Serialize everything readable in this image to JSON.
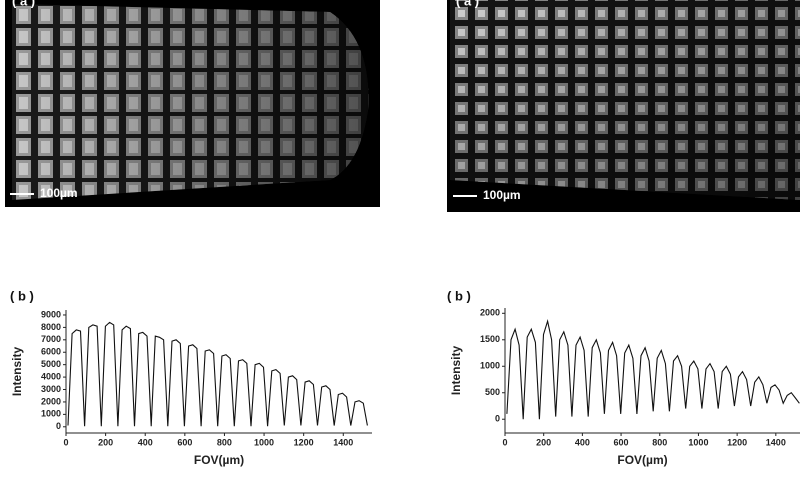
{
  "images": [
    {
      "label": "( a )",
      "scale_bar": "100µm"
    },
    {
      "label": "( a )",
      "scale_bar": "100µm"
    }
  ],
  "chart_data": [
    {
      "type": "line",
      "panel_label": "( b )",
      "x_label": "FOV(µm)",
      "y_label": "Intensity",
      "color": "#111111",
      "x": [
        10,
        31,
        52,
        73,
        94,
        115,
        136,
        157,
        178,
        199,
        220,
        241,
        262,
        283,
        304,
        325,
        346,
        367,
        388,
        409,
        430,
        451,
        472,
        493,
        514,
        535,
        556,
        577,
        598,
        619,
        640,
        661,
        682,
        703,
        724,
        745,
        766,
        787,
        808,
        829,
        850,
        871,
        892,
        913,
        934,
        955,
        976,
        997,
        1018,
        1039,
        1060,
        1081,
        1102,
        1123,
        1144,
        1165,
        1186,
        1207,
        1228,
        1249,
        1270,
        1291,
        1312,
        1333,
        1354,
        1375,
        1396,
        1417,
        1438,
        1459,
        1480,
        1501,
        1522
      ],
      "values": [
        100,
        7500,
        7800,
        7700,
        50,
        8000,
        8200,
        8100,
        50,
        8100,
        8400,
        8200,
        50,
        7800,
        8100,
        7900,
        50,
        7500,
        7600,
        7300,
        50,
        7300,
        7200,
        7000,
        50,
        6900,
        7000,
        6700,
        50,
        6500,
        6600,
        6300,
        50,
        6100,
        6200,
        5900,
        50,
        5700,
        5800,
        5500,
        50,
        5300,
        5400,
        5100,
        50,
        5000,
        5100,
        4800,
        50,
        4500,
        4600,
        4300,
        100,
        4000,
        4100,
        3800,
        100,
        3600,
        3700,
        3400,
        100,
        3200,
        3300,
        3000,
        100,
        2600,
        2700,
        2400,
        100,
        2000,
        2100,
        1900,
        100
      ],
      "xlim": [
        0,
        1545
      ],
      "ylim": [
        -500,
        9400
      ],
      "xticks": [
        0,
        200,
        400,
        600,
        800,
        1000,
        1200,
        1400
      ],
      "yticks": [
        0,
        1000,
        2000,
        3000,
        4000,
        5000,
        6000,
        7000,
        8000,
        9000
      ]
    },
    {
      "type": "line",
      "panel_label": "( b )",
      "x_label": "FOV(µm)",
      "y_label": "Intensity",
      "color": "#111111",
      "x": [
        10,
        31,
        52,
        73,
        94,
        115,
        136,
        157,
        178,
        199,
        220,
        241,
        262,
        283,
        304,
        325,
        346,
        367,
        388,
        409,
        430,
        451,
        472,
        493,
        514,
        535,
        556,
        577,
        598,
        619,
        640,
        661,
        682,
        703,
        724,
        745,
        766,
        787,
        808,
        829,
        850,
        871,
        892,
        913,
        934,
        955,
        976,
        997,
        1018,
        1039,
        1060,
        1081,
        1102,
        1123,
        1144,
        1165,
        1186,
        1207,
        1228,
        1249,
        1270,
        1291,
        1312,
        1333,
        1354,
        1375,
        1396,
        1417,
        1438,
        1459,
        1480,
        1501,
        1522
      ],
      "values": [
        100,
        1500,
        1700,
        1400,
        0,
        1550,
        1700,
        1450,
        0,
        1600,
        1850,
        1500,
        50,
        1500,
        1650,
        1400,
        50,
        1400,
        1550,
        1300,
        50,
        1350,
        1500,
        1250,
        100,
        1300,
        1450,
        1200,
        100,
        1250,
        1400,
        1150,
        100,
        1200,
        1350,
        1100,
        150,
        1150,
        1300,
        1050,
        150,
        1100,
        1200,
        1000,
        200,
        1000,
        1100,
        950,
        200,
        950,
        1050,
        900,
        200,
        900,
        1000,
        850,
        250,
        800,
        900,
        750,
        250,
        700,
        800,
        650,
        300,
        600,
        650,
        550,
        300,
        450,
        500,
        400,
        300
      ],
      "xlim": [
        0,
        1525
      ],
      "ylim": [
        -260,
        2100
      ],
      "xticks": [
        0,
        200,
        400,
        600,
        800,
        1000,
        1200,
        1400
      ],
      "yticks": [
        0,
        500,
        1000,
        1500,
        2000
      ]
    }
  ]
}
